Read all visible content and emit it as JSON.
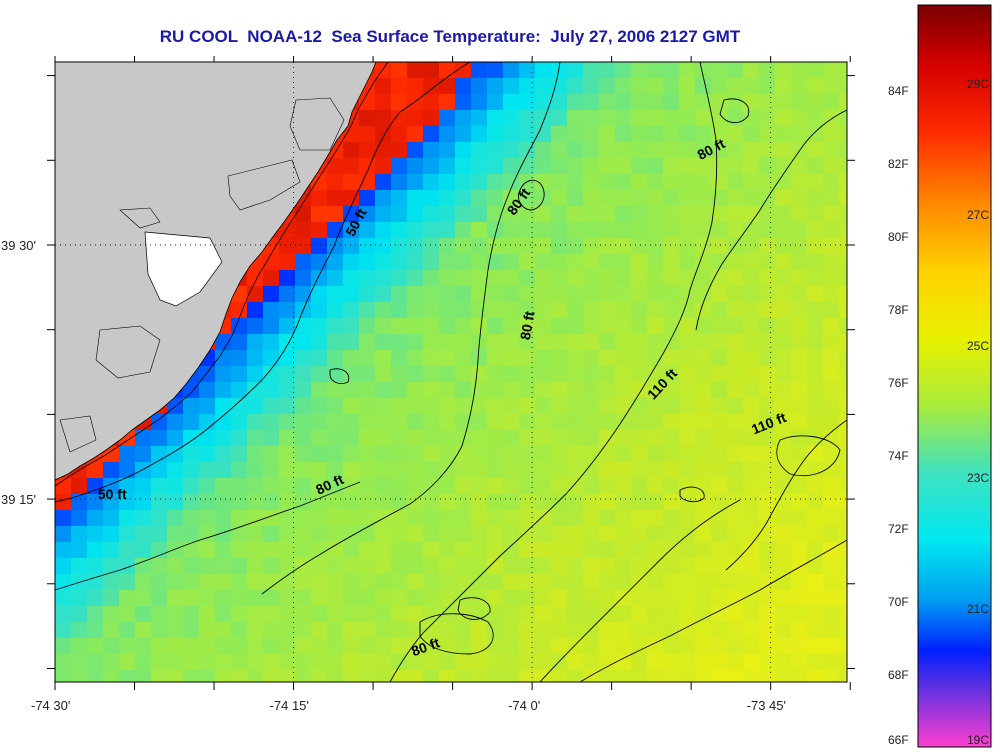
{
  "title": "RU COOL  NOAA-12  Sea Surface Temperature:  July 27, 2006 2127 GMT",
  "map": {
    "lon_range": [
      -74.5,
      -73.67
    ],
    "lat_range": [
      39.07,
      39.68
    ],
    "x_ticks": [
      {
        "lon": -74.5,
        "label": "-74 30'"
      },
      {
        "lon": -74.25,
        "label": "-74 15'"
      },
      {
        "lon": -74.0,
        "label": "-74 0'"
      },
      {
        "lon": -73.75,
        "label": "-73 45'"
      }
    ],
    "y_ticks": [
      {
        "lat": 39.5,
        "label": "39 30'"
      },
      {
        "lat": 39.25,
        "label": "39 15'"
      }
    ],
    "land_color": "#c8c8c8",
    "depth_labels": [
      {
        "text": "50 ft",
        "lon": -74.18,
        "lat": 39.52,
        "angle": -62
      },
      {
        "text": "80 ft",
        "lon": -74.01,
        "lat": 39.54,
        "angle": -55
      },
      {
        "text": "80 ft",
        "lon": -73.81,
        "lat": 39.59,
        "angle": -28
      },
      {
        "text": "80 ft",
        "lon": -74.0,
        "lat": 39.42,
        "angle": -80
      },
      {
        "text": "110 ft",
        "lon": -73.86,
        "lat": 39.36,
        "angle": -47
      },
      {
        "text": "110 ft",
        "lon": -73.75,
        "lat": 39.32,
        "angle": -22
      },
      {
        "text": "80 ft",
        "lon": -74.21,
        "lat": 39.26,
        "angle": -25
      },
      {
        "text": "50 ft",
        "lon": -74.44,
        "lat": 39.25,
        "angle": 0
      },
      {
        "text": "80 ft",
        "lon": -74.11,
        "lat": 39.1,
        "angle": -20
      }
    ]
  },
  "colorbar": {
    "f_labels": [
      "84F",
      "82F",
      "80F",
      "78F",
      "76F",
      "74F",
      "72F",
      "70F",
      "68F",
      "66F"
    ],
    "f_values": [
      84,
      82,
      80,
      78,
      76,
      74,
      72,
      70,
      68,
      66
    ],
    "c_labels": [
      "29C",
      "27C",
      "25C",
      "23C",
      "21C",
      "19C"
    ],
    "c_values": [
      29,
      27,
      25,
      23,
      21,
      19
    ],
    "range_c": [
      18.9,
      30.2
    ]
  }
}
